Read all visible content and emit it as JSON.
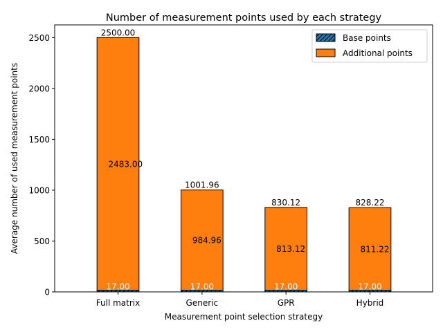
{
  "chart_data": {
    "type": "bar",
    "stacked": true,
    "title": "Number of measurement points used by each strategy",
    "xlabel": "Measurement point selection strategy",
    "ylabel": "Average number of used measurement points",
    "categories": [
      "Full matrix",
      "Generic",
      "GPR",
      "Hybrid"
    ],
    "ylim": [
      0,
      2625
    ],
    "yticks": [
      0,
      500,
      1000,
      1500,
      2000,
      2500
    ],
    "ytick_labels": [
      "0",
      "500",
      "1000",
      "1500",
      "2000",
      "2500"
    ],
    "grid": false,
    "legend_position": "top-right",
    "series": [
      {
        "name": "Base points",
        "values": [
          17,
          17,
          17,
          17
        ],
        "labels": [
          "17.00",
          "17.00",
          "17.00",
          "17.00"
        ],
        "color": "#1f77b4",
        "hatch": "diagonal"
      },
      {
        "name": "Additional points",
        "values": [
          2483,
          984.96,
          813.12,
          811.22
        ],
        "labels": [
          "2483.00",
          "984.96",
          "813.12",
          "811.22"
        ],
        "color": "#ff7f0e"
      }
    ],
    "totals": [
      2500,
      1001.96,
      830.12,
      828.22
    ],
    "total_labels": [
      "2500.00",
      "1001.96",
      "830.12",
      "828.22"
    ]
  }
}
